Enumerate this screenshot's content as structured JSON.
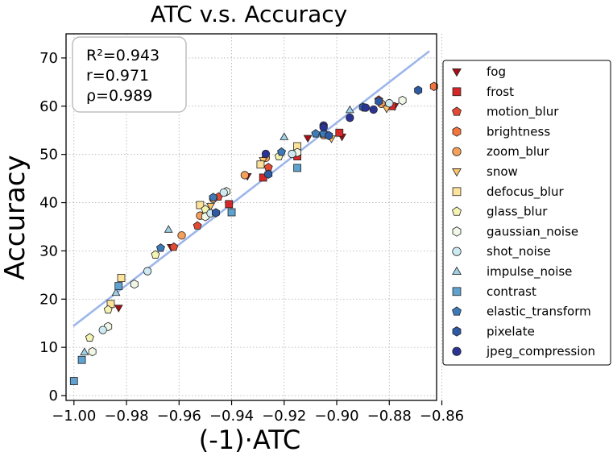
{
  "chart_data": {
    "type": "scatter",
    "title": "ATC  v.s.  Accuracy",
    "xlabel": "(-1)·ATC",
    "ylabel": "Accuracy",
    "xlim": [
      -1.003,
      -0.862
    ],
    "ylim": [
      -1,
      75
    ],
    "xticks": [
      -1.0,
      -0.98,
      -0.96,
      -0.94,
      -0.92,
      -0.9,
      -0.88,
      -0.86
    ],
    "xtick_labels": [
      "−1.00",
      "−0.98",
      "−0.96",
      "−0.94",
      "−0.92",
      "−0.90",
      "−0.88",
      "−0.86"
    ],
    "yticks": [
      0,
      10,
      20,
      30,
      40,
      50,
      60,
      70
    ],
    "ytick_labels": [
      "0",
      "10",
      "20",
      "30",
      "40",
      "50",
      "60",
      "70"
    ],
    "grid": true,
    "legend_position": "right, outside plot",
    "stats": [
      "R²=0.943",
      "r=0.971",
      "ρ=0.989"
    ],
    "fit_line": {
      "x": [
        -1.0,
        -0.865
      ],
      "y": [
        14.5,
        71.3
      ],
      "color": "#9db6ea"
    },
    "series": [
      {
        "name": "fog",
        "marker": "triangle-down",
        "color": "#a50f15",
        "points": [
          [
            -0.983,
            18.2
          ],
          [
            -0.963,
            30.8
          ],
          [
            -0.934,
            45.5
          ],
          [
            -0.911,
            53.4
          ],
          [
            -0.898,
            53.7
          ],
          [
            -0.878,
            60.0
          ]
        ]
      },
      {
        "name": "frost",
        "marker": "square",
        "color": "#d62728",
        "points": [
          [
            -0.941,
            39.7
          ],
          [
            -0.928,
            45.2
          ],
          [
            -0.915,
            49.6
          ],
          [
            -0.899,
            54.5
          ],
          [
            -0.879,
            60.0
          ]
        ]
      },
      {
        "name": "motion_blur",
        "marker": "pentagon",
        "color": "#e34a33",
        "points": [
          [
            -0.962,
            30.8
          ],
          [
            -0.953,
            35.2
          ],
          [
            -0.945,
            41.2
          ],
          [
            -0.926,
            47.3
          ],
          [
            -0.904,
            54.0
          ],
          [
            -0.884,
            61.3
          ]
        ]
      },
      {
        "name": "brightness",
        "marker": "hexagon",
        "color": "#f4743d",
        "points": [
          [
            -0.863,
            64.1
          ]
        ]
      },
      {
        "name": "zoom_blur",
        "marker": "circle",
        "color": "#f5a05a",
        "points": [
          [
            -0.959,
            33.2
          ],
          [
            -0.952,
            37.3
          ],
          [
            -0.947,
            40.8
          ],
          [
            -0.935,
            45.7
          ],
          [
            -0.927,
            49.3
          ],
          [
            -0.905,
            54.0
          ],
          [
            -0.883,
            60.5
          ]
        ]
      },
      {
        "name": "snow",
        "marker": "triangle-down",
        "color": "#fbc36a",
        "points": [
          [
            -0.948,
            39.3
          ],
          [
            -0.928,
            48.8
          ],
          [
            -0.902,
            53.3
          ],
          [
            -0.881,
            59.5
          ]
        ]
      },
      {
        "name": "defocus_blur",
        "marker": "square",
        "color": "#fde39a",
        "points": [
          [
            -0.982,
            24.4
          ],
          [
            -0.986,
            19.0
          ],
          [
            -0.952,
            39.5
          ],
          [
            -0.929,
            47.9
          ],
          [
            -0.915,
            51.7
          ]
        ]
      },
      {
        "name": "glass_blur",
        "marker": "pentagon",
        "color": "#f5f3b2",
        "points": [
          [
            -0.994,
            12.0
          ],
          [
            -0.987,
            17.8
          ],
          [
            -0.969,
            29.2
          ],
          [
            -0.95,
            38.6
          ],
          [
            -0.922,
            49.6
          ]
        ]
      },
      {
        "name": "gaussian_noise",
        "marker": "hexagon",
        "color": "#f0f7e6",
        "points": [
          [
            -0.993,
            9.1
          ],
          [
            -0.987,
            14.3
          ],
          [
            -0.977,
            23.1
          ],
          [
            -0.95,
            37.1
          ],
          [
            -0.942,
            42.3
          ],
          [
            -0.915,
            50.4
          ],
          [
            -0.875,
            61.2
          ]
        ]
      },
      {
        "name": "shot_noise",
        "marker": "circle",
        "color": "#cde9f2",
        "points": [
          [
            -0.989,
            13.6
          ],
          [
            -0.972,
            25.8
          ],
          [
            -0.948,
            37.8
          ],
          [
            -0.943,
            42.1
          ],
          [
            -0.917,
            50.1
          ],
          [
            -0.88,
            60.6
          ]
        ]
      },
      {
        "name": "impulse_noise",
        "marker": "triangle-up",
        "color": "#9fd0e5",
        "points": [
          [
            -0.996,
            9.0
          ],
          [
            -0.984,
            21.3
          ],
          [
            -0.964,
            34.4
          ],
          [
            -0.92,
            53.6
          ],
          [
            -0.895,
            59.2
          ]
        ]
      },
      {
        "name": "contrast",
        "marker": "square",
        "color": "#5fa2cf",
        "points": [
          [
            -1.0,
            3.0
          ],
          [
            -0.997,
            7.4
          ],
          [
            -0.983,
            22.7
          ],
          [
            -0.94,
            38.0
          ],
          [
            -0.915,
            47.2
          ]
        ]
      },
      {
        "name": "elastic_transform",
        "marker": "pentagon",
        "color": "#3d7ab8",
        "points": [
          [
            -0.967,
            30.6
          ],
          [
            -0.947,
            41.1
          ],
          [
            -0.921,
            50.5
          ],
          [
            -0.908,
            54.3
          ],
          [
            -0.905,
            54.3
          ]
        ]
      },
      {
        "name": "pixelate",
        "marker": "hexagon",
        "color": "#2e5aa3",
        "points": [
          [
            -0.946,
            37.9
          ],
          [
            -0.926,
            45.9
          ],
          [
            -0.903,
            53.9
          ],
          [
            -0.89,
            59.8
          ],
          [
            -0.884,
            61.0
          ],
          [
            -0.869,
            63.3
          ]
        ]
      },
      {
        "name": "jpeg_compression",
        "marker": "circle",
        "color": "#2b3495",
        "points": [
          [
            -0.927,
            50.1
          ],
          [
            -0.905,
            56.0
          ],
          [
            -0.895,
            57.6
          ],
          [
            -0.889,
            59.7
          ],
          [
            -0.886,
            59.3
          ],
          [
            -0.905,
            55.6
          ]
        ]
      }
    ]
  }
}
